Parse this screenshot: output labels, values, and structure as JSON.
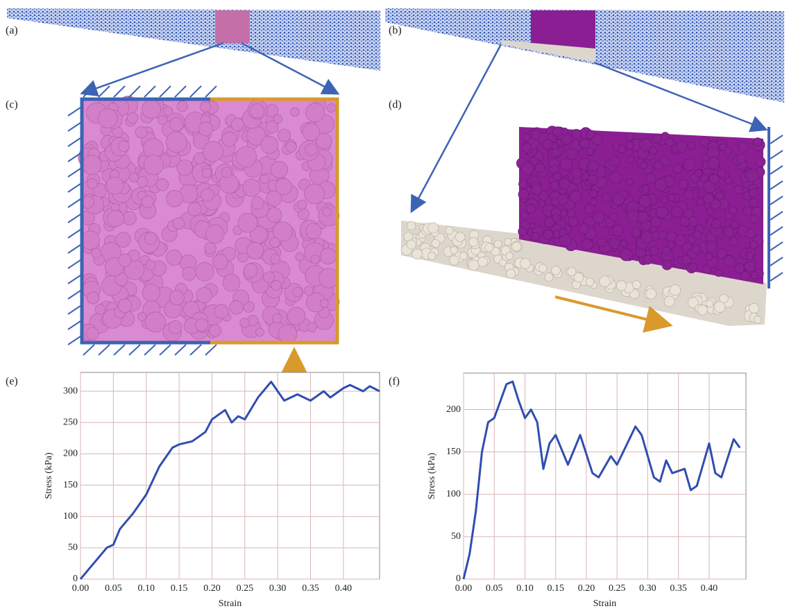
{
  "panel_labels": [
    "(a)",
    "(b)",
    "(c)",
    "(d)",
    "(e)",
    "(f)"
  ],
  "chart_data": [
    {
      "type": "line",
      "x_label": "Strain",
      "y_label": "Stress (kPa)",
      "grid": true,
      "xlim": [
        0,
        0.455
      ],
      "ylim": [
        0,
        330
      ],
      "xticks": [
        {
          "value": 0,
          "label": "0.00"
        },
        {
          "value": 0.05,
          "label": "0.05"
        },
        {
          "value": 0.1,
          "label": "0.10"
        },
        {
          "value": 0.15,
          "label": "0.15"
        },
        {
          "value": 0.2,
          "label": "0.20"
        },
        {
          "value": 0.25,
          "label": "0.25"
        },
        {
          "value": 0.3,
          "label": "0.30"
        },
        {
          "value": 0.35,
          "label": "0.35"
        },
        {
          "value": 0.4,
          "label": "0.40"
        }
      ],
      "yticks": [
        0,
        50,
        100,
        150,
        200,
        250,
        300
      ],
      "x": [
        0,
        0.02,
        0.04,
        0.05,
        0.06,
        0.08,
        0.1,
        0.12,
        0.14,
        0.15,
        0.17,
        0.19,
        0.2,
        0.22,
        0.23,
        0.24,
        0.25,
        0.27,
        0.29,
        0.3,
        0.31,
        0.33,
        0.35,
        0.37,
        0.38,
        0.4,
        0.41,
        0.43,
        0.44,
        0.455
      ],
      "series": [
        {
          "color": "#2f4db0",
          "values": [
            0,
            25,
            50,
            55,
            80,
            105,
            135,
            180,
            210,
            215,
            220,
            235,
            255,
            270,
            250,
            260,
            255,
            290,
            315,
            300,
            285,
            295,
            285,
            300,
            290,
            305,
            310,
            300,
            308,
            300
          ]
        }
      ]
    },
    {
      "type": "line",
      "x_label": "Strain",
      "y_label": "Stress (kPa)",
      "grid": true,
      "xlim": [
        0,
        0.46
      ],
      "ylim": [
        0,
        243
      ],
      "xticks": [
        {
          "value": 0,
          "label": "0.00"
        },
        {
          "value": 0.05,
          "label": "0.05"
        },
        {
          "value": 0.1,
          "label": "0.10"
        },
        {
          "value": 0.15,
          "label": "0.15"
        },
        {
          "value": 0.2,
          "label": "0.20"
        },
        {
          "value": 0.25,
          "label": "0.25"
        },
        {
          "value": 0.3,
          "label": "0.30"
        },
        {
          "value": 0.35,
          "label": "0.35"
        },
        {
          "value": 0.4,
          "label": "0.40"
        }
      ],
      "yticks": [
        0,
        50,
        100,
        150,
        200
      ],
      "x": [
        0,
        0.01,
        0.02,
        0.03,
        0.04,
        0.05,
        0.06,
        0.07,
        0.08,
        0.09,
        0.1,
        0.11,
        0.12,
        0.13,
        0.14,
        0.15,
        0.17,
        0.19,
        0.21,
        0.22,
        0.24,
        0.25,
        0.27,
        0.28,
        0.29,
        0.31,
        0.32,
        0.33,
        0.34,
        0.36,
        0.37,
        0.38,
        0.4,
        0.41,
        0.42,
        0.44,
        0.45
      ],
      "series": [
        {
          "color": "#2f4db0",
          "values": [
            0,
            30,
            80,
            150,
            185,
            190,
            210,
            230,
            233,
            210,
            190,
            200,
            185,
            130,
            160,
            170,
            135,
            170,
            125,
            120,
            145,
            135,
            165,
            180,
            170,
            120,
            115,
            140,
            125,
            130,
            105,
            110,
            160,
            125,
            120,
            165,
            155
          ]
        }
      ]
    }
  ]
}
